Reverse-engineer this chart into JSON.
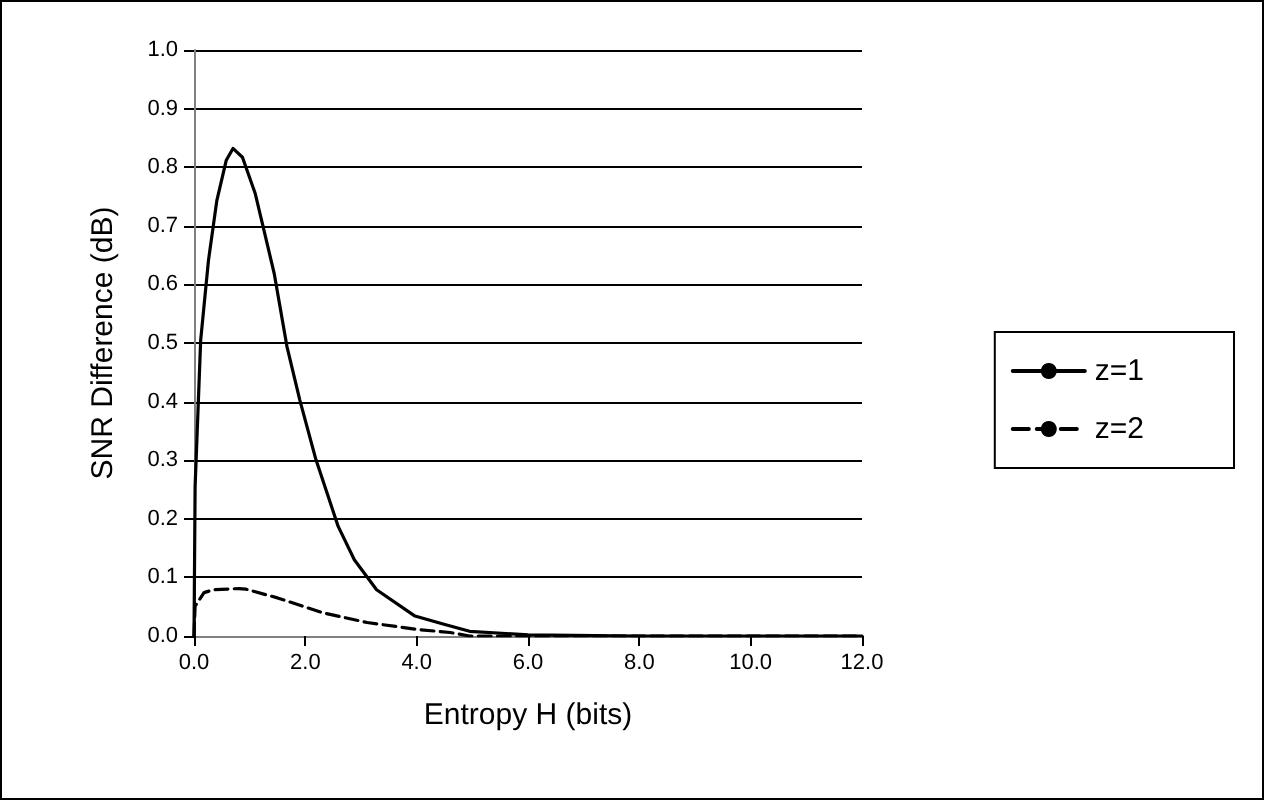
{
  "chart_data": {
    "type": "line",
    "xlabel": "Entropy H (bits)",
    "ylabel": "SNR Difference (dB)",
    "xlim": [
      0,
      12
    ],
    "ylim": [
      0,
      1
    ],
    "xticks": [
      {
        "value": 0,
        "label": "0.0"
      },
      {
        "value": 2,
        "label": "2.0"
      },
      {
        "value": 4,
        "label": "4.0"
      },
      {
        "value": 6,
        "label": "6.0"
      },
      {
        "value": 8,
        "label": "8.0"
      },
      {
        "value": 10,
        "label": "10.0"
      },
      {
        "value": 12,
        "label": "12.0"
      }
    ],
    "yticks": [
      {
        "value": 0,
        "label": "0.0"
      },
      {
        "value": 0.1,
        "label": "0.1"
      },
      {
        "value": 0.2,
        "label": "0.2"
      },
      {
        "value": 0.3,
        "label": "0.3"
      },
      {
        "value": 0.4,
        "label": "0.4"
      },
      {
        "value": 0.5,
        "label": "0.5"
      },
      {
        "value": 0.6,
        "label": "0.6"
      },
      {
        "value": 0.7,
        "label": "0.7"
      },
      {
        "value": 0.8,
        "label": "0.8"
      },
      {
        "value": 0.9,
        "label": "0.9"
      },
      {
        "value": 1,
        "label": "1.0"
      }
    ],
    "grid": "y",
    "legend": "right",
    "marker": "none",
    "series": [
      {
        "name": "z=1",
        "color": "#000000",
        "line_style": "solid",
        "x": [
          0,
          0.02,
          0.12,
          0.26,
          0.41,
          0.58,
          0.7,
          0.87,
          1.1,
          1.27,
          1.44,
          1.67,
          1.9,
          2.19,
          2.59,
          2.88,
          3.28,
          3.97,
          4.49,
          4.95,
          6,
          8,
          10,
          12
        ],
        "values": [
          0,
          0.255,
          0.505,
          0.641,
          0.743,
          0.812,
          0.832,
          0.817,
          0.755,
          0.687,
          0.619,
          0.494,
          0.403,
          0.301,
          0.187,
          0.13,
          0.079,
          0.034,
          0.02,
          0.008,
          0.002,
          0,
          0,
          0
        ]
      },
      {
        "name": "z=2",
        "color": "#000000",
        "line_style": "dashed",
        "x": [
          0,
          0.02,
          0.18,
          0.35,
          0.81,
          0.93,
          1.5,
          2.3,
          3.11,
          4.03,
          4.6,
          4.95,
          6,
          8,
          10,
          12
        ],
        "values": [
          0,
          0.051,
          0.074,
          0.079,
          0.081,
          0.08,
          0.065,
          0.04,
          0.023,
          0.011,
          0.006,
          0,
          0,
          0,
          0,
          0
        ]
      }
    ]
  }
}
